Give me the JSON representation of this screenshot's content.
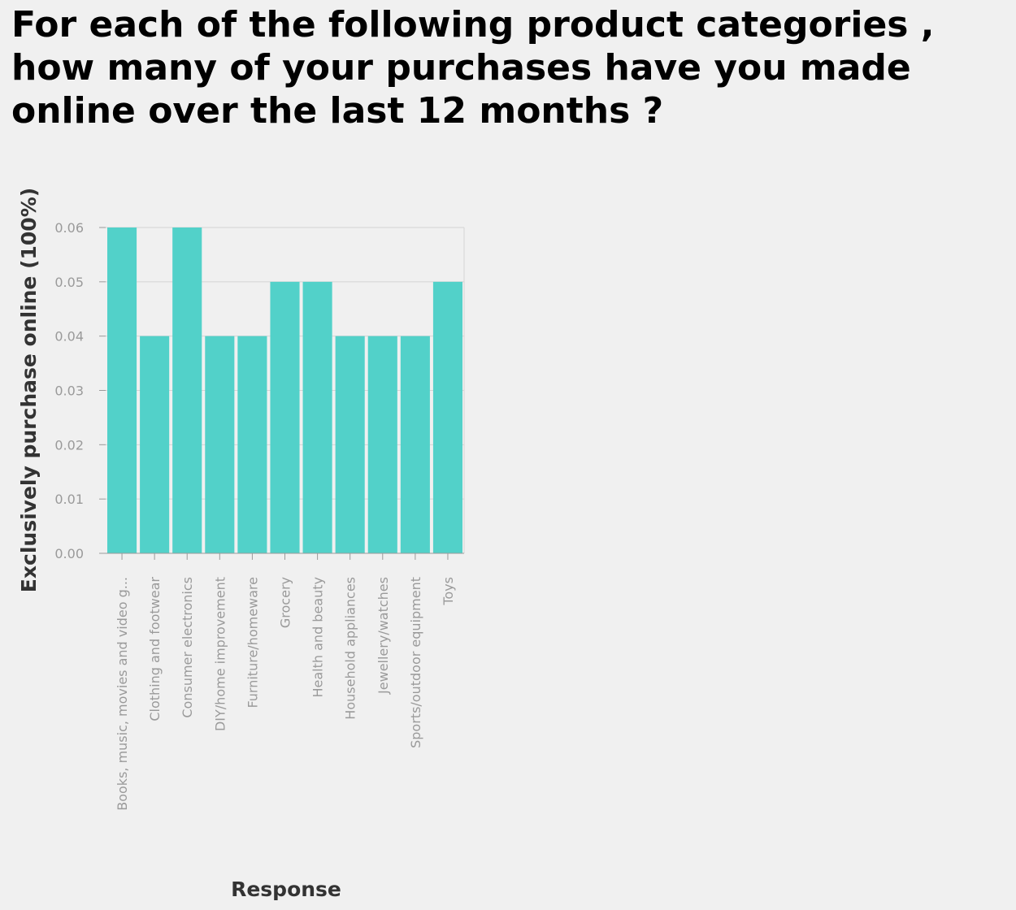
{
  "chart_data": {
    "type": "bar",
    "title": "For each of the following product categories , how many of your purchases have you made online over the last 12 months ?",
    "xlabel": "Response",
    "ylabel": "Exclusively purchase online (100%)",
    "categories": [
      "Books, music, movies and video g...",
      "Clothing and footwear",
      "Consumer electronics",
      "DIY/home improvement",
      "Furniture/homeware",
      "Grocery",
      "Health and beauty",
      "Household appliances",
      "Jewellery/watches",
      "Sports/outdoor equipment",
      "Toys"
    ],
    "values": [
      0.06,
      0.04,
      0.06,
      0.04,
      0.04,
      0.05,
      0.05,
      0.04,
      0.04,
      0.04,
      0.05
    ],
    "yticks": [
      "0.00",
      "0.01",
      "0.02",
      "0.03",
      "0.04",
      "0.05",
      "0.06"
    ],
    "ylim": [
      0,
      0.06
    ],
    "grid": true,
    "bar_color": "#52d1c9"
  }
}
